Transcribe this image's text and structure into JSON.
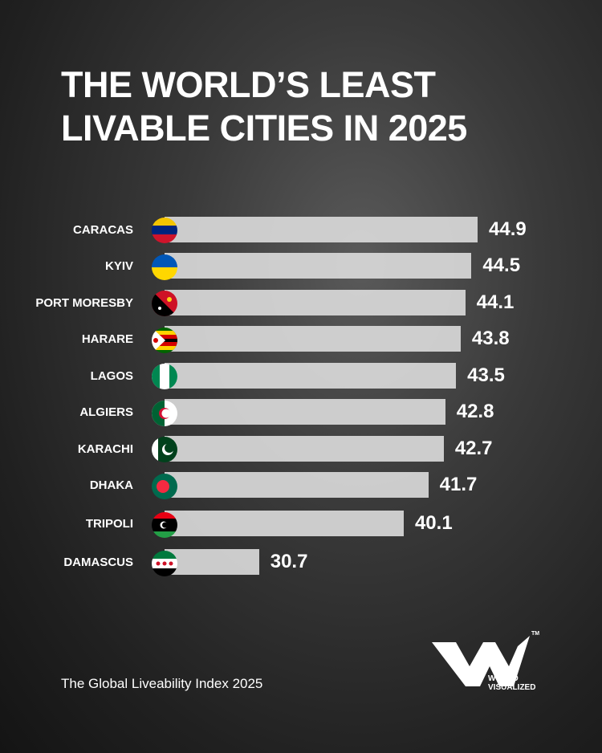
{
  "chart_data": {
    "type": "bar",
    "orientation": "horizontal",
    "title_lines": [
      "THE WORLD’S LEAST",
      "LIVABLE CITIES IN 2025"
    ],
    "categories": [
      "CARACAS",
      "KYIV",
      "PORT MORESBY",
      "HARARE",
      "LAGOS",
      "ALGIERS",
      "KARACHI",
      "DHAKA",
      "TRIPOLI",
      "DAMASCUS"
    ],
    "values": [
      44.9,
      44.5,
      44.1,
      43.8,
      43.5,
      42.8,
      42.7,
      41.7,
      40.1,
      30.7
    ],
    "color": "#d9d9d9",
    "source": "The Global Liveability Index 2025"
  },
  "logo": {
    "line1": "WORLD",
    "line2": "VISUALIZED",
    "mark": "TM"
  }
}
